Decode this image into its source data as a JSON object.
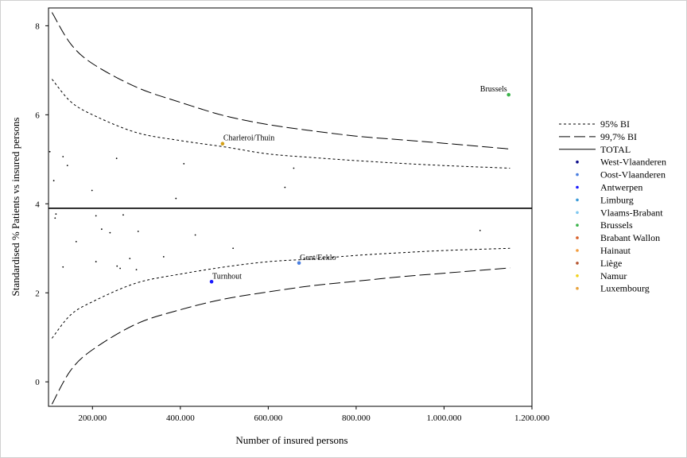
{
  "chart_data": {
    "type": "scatter",
    "title": "",
    "xlabel": "Number of insured persons",
    "ylabel": "Standardised % Patients vs insured persons",
    "xlim": [
      100000,
      1200000
    ],
    "ylim": [
      -0.55,
      8.4
    ],
    "x_ticks": [
      {
        "value": 200000,
        "label": "200.000"
      },
      {
        "value": 400000,
        "label": "400.000"
      },
      {
        "value": 600000,
        "label": "600.000"
      },
      {
        "value": 800000,
        "label": "800.000"
      },
      {
        "value": 1000000,
        "label": "1.000.000"
      },
      {
        "value": 1200000,
        "label": "1.200.000"
      }
    ],
    "y_ticks": [
      0,
      2,
      4,
      6,
      8
    ],
    "grid": false,
    "total": 3.9,
    "bands": [
      {
        "name": "95% BI",
        "style": "short-dash",
        "upper": [
          [
            108000,
            6.8
          ],
          [
            150000,
            6.3
          ],
          [
            200000,
            6.0
          ],
          [
            300000,
            5.6
          ],
          [
            400000,
            5.42
          ],
          [
            500000,
            5.28
          ],
          [
            600000,
            5.12
          ],
          [
            700000,
            5.04
          ],
          [
            800000,
            4.97
          ],
          [
            900000,
            4.91
          ],
          [
            1000000,
            4.86
          ],
          [
            1150000,
            4.8
          ]
        ],
        "lower": [
          [
            108000,
            0.98
          ],
          [
            150000,
            1.5
          ],
          [
            200000,
            1.8
          ],
          [
            300000,
            2.22
          ],
          [
            400000,
            2.42
          ],
          [
            500000,
            2.58
          ],
          [
            600000,
            2.7
          ],
          [
            700000,
            2.76
          ],
          [
            800000,
            2.84
          ],
          [
            900000,
            2.9
          ],
          [
            1000000,
            2.95
          ],
          [
            1150000,
            3.0
          ]
        ]
      },
      {
        "name": "99,7% BI",
        "style": "long-dash",
        "upper": [
          [
            108000,
            8.3
          ],
          [
            150000,
            7.6
          ],
          [
            200000,
            7.15
          ],
          [
            300000,
            6.62
          ],
          [
            400000,
            6.28
          ],
          [
            500000,
            5.98
          ],
          [
            600000,
            5.78
          ],
          [
            700000,
            5.64
          ],
          [
            800000,
            5.52
          ],
          [
            900000,
            5.44
          ],
          [
            1000000,
            5.36
          ],
          [
            1150000,
            5.23
          ]
        ],
        "lower": [
          [
            108000,
            -0.5
          ],
          [
            150000,
            0.25
          ],
          [
            200000,
            0.72
          ],
          [
            300000,
            1.3
          ],
          [
            400000,
            1.62
          ],
          [
            500000,
            1.86
          ],
          [
            600000,
            2.02
          ],
          [
            700000,
            2.16
          ],
          [
            800000,
            2.26
          ],
          [
            900000,
            2.36
          ],
          [
            1000000,
            2.44
          ],
          [
            1150000,
            2.56
          ]
        ]
      }
    ],
    "unlabeled_points": [
      [
        103000,
        5.17
      ],
      [
        112000,
        4.52
      ],
      [
        117000,
        3.77
      ],
      [
        115000,
        3.68
      ],
      [
        133000,
        5.06
      ],
      [
        143000,
        4.86
      ],
      [
        133000,
        2.58
      ],
      [
        163000,
        3.15
      ],
      [
        199000,
        4.3
      ],
      [
        208000,
        3.73
      ],
      [
        208000,
        2.7
      ],
      [
        221000,
        3.43
      ],
      [
        240000,
        3.35
      ],
      [
        255000,
        5.02
      ],
      [
        256000,
        2.6
      ],
      [
        263000,
        2.55
      ],
      [
        270000,
        3.75
      ],
      [
        285000,
        2.77
      ],
      [
        300000,
        2.52
      ],
      [
        304000,
        3.38
      ],
      [
        362000,
        2.81
      ],
      [
        390000,
        4.12
      ],
      [
        408000,
        4.9
      ],
      [
        434000,
        3.3
      ],
      [
        520000,
        3.0
      ],
      [
        638000,
        4.37
      ],
      [
        658000,
        4.8
      ],
      [
        1082000,
        3.4
      ]
    ],
    "labeled_points": [
      {
        "label": "Brussels",
        "x": 1147000,
        "y": 6.45,
        "color": "#3cb44b",
        "label_pos": "left"
      },
      {
        "label": "Charleroi/Thuin",
        "x": 496000,
        "y": 5.35,
        "color": "#d4a017",
        "label_pos": "right"
      },
      {
        "label": "Gent/Eeklo",
        "x": 670000,
        "y": 2.67,
        "color": "#4a7fe0",
        "label_pos": "right"
      },
      {
        "label": "Turnhout",
        "x": 471000,
        "y": 2.25,
        "color": "#1a1aff",
        "label_pos": "right"
      }
    ],
    "legend_position": "right",
    "legend_lines": [
      {
        "label": "95% BI",
        "style": "short-dash"
      },
      {
        "label": "99,7% BI",
        "style": "long-dash"
      },
      {
        "label": "TOTAL",
        "style": "solid"
      }
    ],
    "legend_points": [
      {
        "label": "West-Vlaanderen",
        "color": "#0a0a8a"
      },
      {
        "label": "Oost-Vlaanderen",
        "color": "#4a7fe0"
      },
      {
        "label": "Antwerpen",
        "color": "#1a1aff"
      },
      {
        "label": "Limburg",
        "color": "#3a9ad9"
      },
      {
        "label": "Vlaams-Brabant",
        "color": "#7fc8f0"
      },
      {
        "label": "Brussels",
        "color": "#3cb44b"
      },
      {
        "label": "Brabant Wallon",
        "color": "#d9622b"
      },
      {
        "label": "Hainaut",
        "color": "#f39c3c"
      },
      {
        "label": "Liège",
        "color": "#b5532e"
      },
      {
        "label": "Namur",
        "color": "#f2d21b"
      },
      {
        "label": "Luxembourg",
        "color": "#e8a23a"
      }
    ]
  }
}
